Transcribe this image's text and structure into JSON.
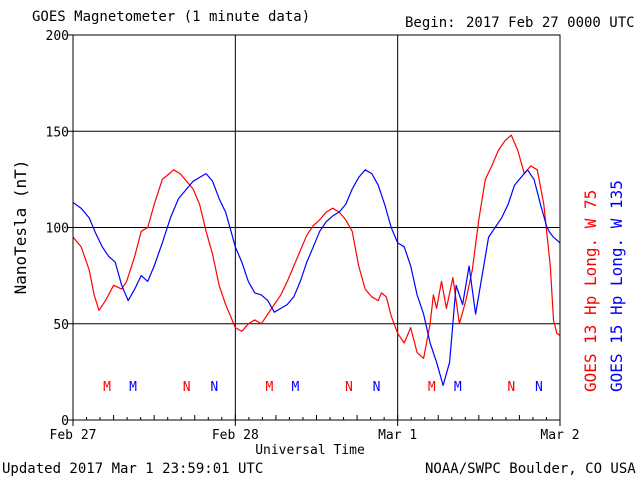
{
  "header": {
    "title": "GOES Magnetometer (1 minute data)",
    "begin_label": "Begin:",
    "begin_value": "2017 Feb 27 0000 UTC"
  },
  "footer": {
    "updated": "Updated 2017 Mar  1 23:59:01 UTC",
    "credit": "NOAA/SWPC Boulder, CO USA"
  },
  "colors": {
    "series1": "#ff0000",
    "series2": "#0000ff",
    "grid": "#000000"
  },
  "chart_data": {
    "type": "line",
    "xlabel": "Universal Time",
    "ylabel": "NanoTesla (nT)",
    "x_unit": "days since 2017 Feb 27 0000 UTC",
    "xlim": [
      0,
      3
    ],
    "ylim": [
      0,
      200
    ],
    "yticks": [
      0,
      50,
      100,
      150,
      200
    ],
    "xticks": [
      {
        "value": 0,
        "label": "Feb 27"
      },
      {
        "value": 1,
        "label": "Feb 28"
      },
      {
        "value": 2,
        "label": "Mar 1"
      },
      {
        "value": 3,
        "label": "Mar 2"
      }
    ],
    "grid": true,
    "markers": [
      {
        "x": 0.21,
        "label": "M",
        "series": 0
      },
      {
        "x": 0.37,
        "label": "M",
        "series": 1
      },
      {
        "x": 0.7,
        "label": "N",
        "series": 0
      },
      {
        "x": 0.87,
        "label": "N",
        "series": 1
      },
      {
        "x": 1.21,
        "label": "M",
        "series": 0
      },
      {
        "x": 1.37,
        "label": "M",
        "series": 1
      },
      {
        "x": 1.7,
        "label": "N",
        "series": 0
      },
      {
        "x": 1.87,
        "label": "N",
        "series": 1
      },
      {
        "x": 2.21,
        "label": "M",
        "series": 0
      },
      {
        "x": 2.37,
        "label": "M",
        "series": 1
      },
      {
        "x": 2.7,
        "label": "N",
        "series": 0
      },
      {
        "x": 2.87,
        "label": "N",
        "series": 1
      }
    ],
    "series": [
      {
        "name": "GOES 13 Hp  Long. W 75",
        "color": "#ff0000",
        "x": [
          0.0,
          0.05,
          0.1,
          0.13,
          0.16,
          0.2,
          0.25,
          0.3,
          0.33,
          0.38,
          0.42,
          0.46,
          0.5,
          0.55,
          0.58,
          0.62,
          0.66,
          0.7,
          0.74,
          0.78,
          0.82,
          0.86,
          0.9,
          0.94,
          0.98,
          1.0,
          1.04,
          1.08,
          1.12,
          1.16,
          1.2,
          1.24,
          1.28,
          1.32,
          1.36,
          1.4,
          1.44,
          1.48,
          1.52,
          1.56,
          1.6,
          1.64,
          1.68,
          1.72,
          1.76,
          1.8,
          1.84,
          1.88,
          1.9,
          1.93,
          1.96,
          2.0,
          2.04,
          2.08,
          2.12,
          2.16,
          2.2,
          2.22,
          2.24,
          2.27,
          2.3,
          2.34,
          2.38,
          2.42,
          2.46,
          2.5,
          2.54,
          2.58,
          2.62,
          2.66,
          2.7,
          2.74,
          2.78,
          2.82,
          2.86,
          2.9,
          2.94,
          2.96,
          2.98,
          3.0
        ],
        "values": [
          95,
          90,
          78,
          65,
          57,
          62,
          70,
          68,
          72,
          85,
          98,
          100,
          112,
          125,
          127,
          130,
          128,
          124,
          120,
          112,
          98,
          86,
          70,
          60,
          52,
          48,
          46,
          50,
          52,
          50,
          55,
          60,
          65,
          72,
          80,
          88,
          96,
          101,
          104,
          108,
          110,
          108,
          104,
          98,
          80,
          68,
          64,
          62,
          66,
          64,
          54,
          45,
          40,
          48,
          35,
          32,
          50,
          65,
          58,
          72,
          58,
          74,
          50,
          62,
          78,
          104,
          125,
          132,
          140,
          145,
          148,
          140,
          128,
          132,
          130,
          112,
          80,
          52,
          45,
          44
        ]
      },
      {
        "name": "GOES 15 Hp  Long. W 135",
        "color": "#0000ff",
        "x": [
          0.0,
          0.05,
          0.1,
          0.14,
          0.18,
          0.22,
          0.26,
          0.3,
          0.34,
          0.38,
          0.42,
          0.46,
          0.5,
          0.55,
          0.6,
          0.65,
          0.7,
          0.74,
          0.78,
          0.82,
          0.86,
          0.9,
          0.94,
          0.98,
          1.0,
          1.04,
          1.08,
          1.12,
          1.16,
          1.2,
          1.24,
          1.28,
          1.32,
          1.36,
          1.4,
          1.44,
          1.48,
          1.52,
          1.56,
          1.6,
          1.64,
          1.68,
          1.72,
          1.76,
          1.8,
          1.84,
          1.88,
          1.92,
          1.96,
          2.0,
          2.04,
          2.08,
          2.12,
          2.16,
          2.2,
          2.24,
          2.28,
          2.32,
          2.36,
          2.4,
          2.44,
          2.48,
          2.52,
          2.56,
          2.6,
          2.64,
          2.68,
          2.72,
          2.76,
          2.8,
          2.84,
          2.88,
          2.92,
          2.94,
          2.96,
          3.0
        ],
        "values": [
          113,
          110,
          105,
          97,
          90,
          85,
          82,
          70,
          62,
          68,
          75,
          72,
          80,
          92,
          105,
          115,
          120,
          124,
          126,
          128,
          124,
          115,
          108,
          96,
          90,
          82,
          72,
          66,
          65,
          62,
          56,
          58,
          60,
          64,
          72,
          82,
          90,
          98,
          103,
          106,
          108,
          112,
          120,
          126,
          130,
          128,
          122,
          112,
          100,
          92,
          90,
          80,
          65,
          55,
          40,
          30,
          18,
          30,
          70,
          60,
          80,
          55,
          75,
          95,
          100,
          105,
          112,
          122,
          126,
          130,
          125,
          112,
          100,
          97,
          95,
          92
        ]
      }
    ],
    "legend_position": "right-vertical"
  }
}
